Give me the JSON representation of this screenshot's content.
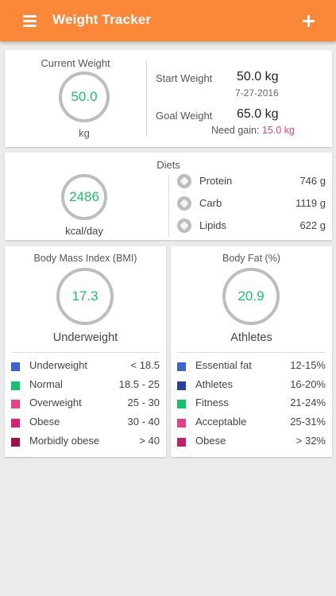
{
  "app_bar": {
    "title": "Weight Tracker",
    "menu_icon": "hamburger-menu-icon",
    "add_icon": "plus-icon",
    "background_color": "#fb8739"
  },
  "weight_card": {
    "current_label": "Current Weight",
    "current_value": "50.0",
    "unit": "kg",
    "start_label": "Start Weight",
    "start_value": "50.0 kg",
    "start_date": "7-27-2016",
    "goal_label": "Goal Weight",
    "goal_value": "65.0 kg",
    "need_gain_label": "Need gain:",
    "need_gain_value": "15.0 kg",
    "need_gain_color": "#e8427a"
  },
  "diets_card": {
    "title": "Diets",
    "calories": "2486",
    "calories_unit": "kcal/day",
    "items": [
      {
        "icon": "protein-icon",
        "name": "Protein",
        "amount": "746 g"
      },
      {
        "icon": "carb-icon",
        "name": "Carb",
        "amount": "1119 g"
      },
      {
        "icon": "lipids-icon",
        "name": "Lipids",
        "amount": "622 g"
      }
    ]
  },
  "bmi_card": {
    "title": "Body Mass Index (BMI)",
    "value": "17.3",
    "classification": "Underweight",
    "legend": [
      {
        "color": "#3a64d4",
        "name": "Underweight",
        "range": "< 18.5"
      },
      {
        "color": "#0fc46a",
        "name": "Normal",
        "range": "18.5 - 25"
      },
      {
        "color": "#ec3e86",
        "name": "Overweight",
        "range": "25 - 30"
      },
      {
        "color": "#d4247a",
        "name": "Obese",
        "range": "30 - 40"
      },
      {
        "color": "#a0104c",
        "name": "Morbidly obese",
        "range": "> 40"
      }
    ]
  },
  "bodyfat_card": {
    "title": "Body Fat (%)",
    "value": "20.9",
    "classification": "Athletes",
    "legend": [
      {
        "color": "#3a64d4",
        "name": "Essential fat",
        "range": "12-15%"
      },
      {
        "color": "#2a3da0",
        "name": "Athletes",
        "range": "16-20%"
      },
      {
        "color": "#0fc46a",
        "name": "Fitness",
        "range": "21-24%"
      },
      {
        "color": "#ec3e86",
        "name": "Acceptable",
        "range": "25-31%"
      },
      {
        "color": "#c41e6c",
        "name": "Obese",
        "range": "> 32%"
      }
    ]
  },
  "value_color": "#1dbf68"
}
